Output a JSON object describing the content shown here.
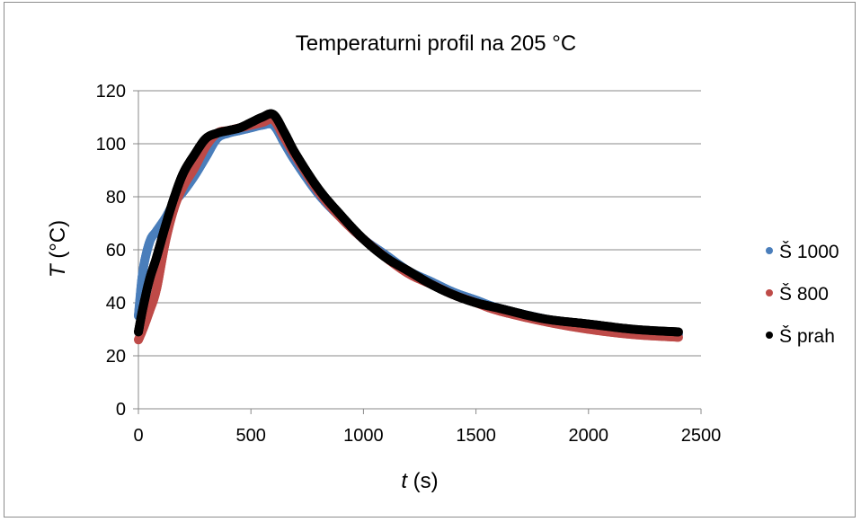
{
  "chart_data": {
    "type": "scatter",
    "title": "Temperaturni profil na 205 °C",
    "xlabel": {
      "var": "t",
      "unit": " (s)"
    },
    "ylabel": {
      "var": "T",
      "unit": " (°C)"
    },
    "xlim": [
      0,
      2500
    ],
    "ylim": [
      0,
      120
    ],
    "xticks": [
      0,
      500,
      1000,
      1500,
      2000,
      2500
    ],
    "yticks": [
      0,
      20,
      40,
      60,
      80,
      100,
      120
    ],
    "grid": "horizontal",
    "legend_position": "right",
    "series": [
      {
        "name": "Š 1000",
        "color": "#4a7ebb",
        "x": [
          0,
          20,
          50,
          80,
          120,
          160,
          200,
          250,
          300,
          350,
          400,
          450,
          500,
          550,
          600,
          650,
          700,
          800,
          900,
          1000,
          1100,
          1200,
          1300,
          1400,
          1500,
          1600,
          1800,
          2000,
          2200,
          2400
        ],
        "y": [
          35,
          52,
          63,
          67,
          72,
          78,
          82,
          88,
          95,
          102,
          104,
          105,
          106,
          107,
          107,
          100,
          93,
          81,
          72,
          64,
          58,
          52,
          48,
          44,
          41,
          38,
          34,
          31,
          29,
          28
        ]
      },
      {
        "name": "Š 800",
        "color": "#be4b48",
        "x": [
          0,
          20,
          50,
          80,
          120,
          160,
          200,
          250,
          300,
          350,
          400,
          450,
          500,
          550,
          600,
          650,
          700,
          800,
          900,
          1000,
          1100,
          1200,
          1300,
          1400,
          1500,
          1600,
          1800,
          2000,
          2200,
          2400
        ],
        "y": [
          26,
          30,
          37,
          45,
          63,
          76,
          84,
          91,
          99,
          104,
          105,
          106,
          107,
          108,
          109,
          102,
          95,
          82,
          72,
          64,
          57,
          51,
          47,
          43,
          40,
          37,
          33,
          30,
          28,
          27
        ]
      },
      {
        "name": "Š prah",
        "color": "#000000",
        "x": [
          0,
          20,
          50,
          80,
          120,
          160,
          200,
          250,
          300,
          350,
          400,
          450,
          500,
          550,
          600,
          650,
          700,
          800,
          900,
          1000,
          1100,
          1200,
          1300,
          1400,
          1500,
          1600,
          1800,
          2000,
          2200,
          2400
        ],
        "y": [
          29,
          38,
          49,
          57,
          69,
          80,
          89,
          96,
          102,
          104,
          105,
          106,
          108,
          110,
          111,
          104,
          96,
          83,
          73,
          64,
          57,
          52,
          47,
          43,
          40,
          38,
          34,
          32,
          30,
          29
        ]
      }
    ]
  }
}
